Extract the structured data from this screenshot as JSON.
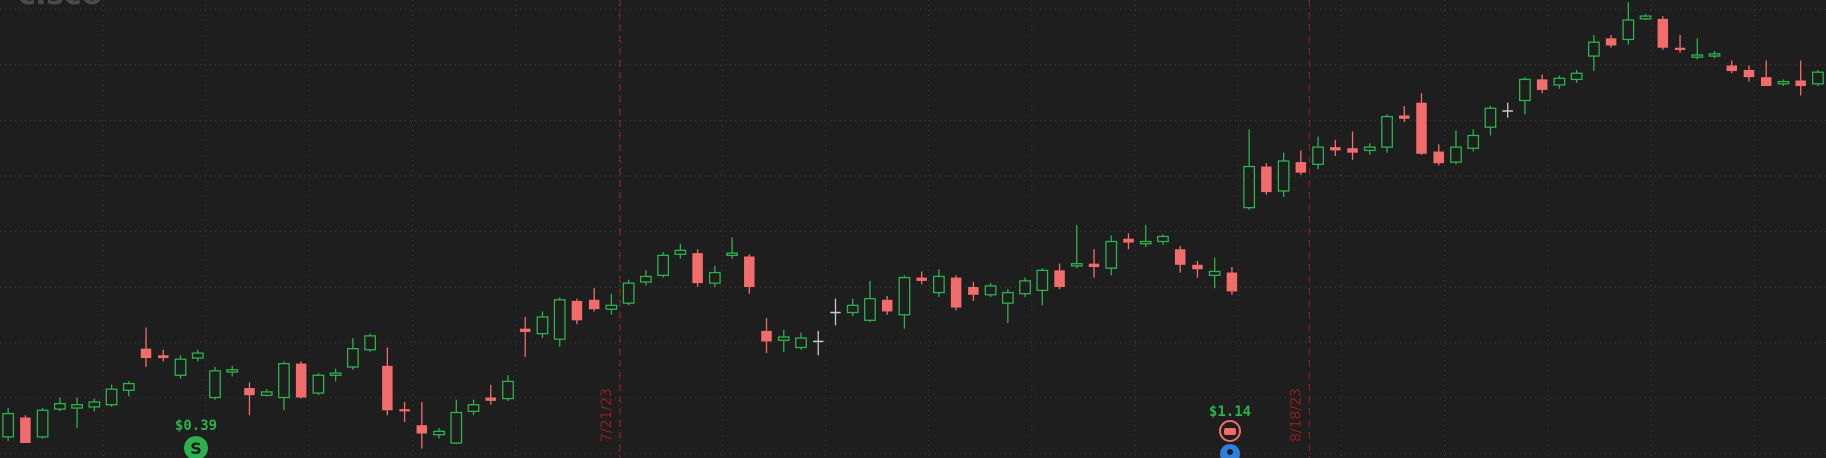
{
  "chart_data": {
    "type": "candlestick",
    "title": "cisco",
    "categories": [
      null,
      null,
      null,
      null,
      null,
      null,
      null,
      null,
      null,
      null,
      null,
      null,
      null,
      null,
      null,
      null,
      null,
      null,
      null,
      null,
      null,
      null,
      null,
      null,
      null,
      null,
      null,
      null,
      null,
      null,
      null,
      null,
      null,
      null,
      null,
      null,
      "7/21/23",
      null,
      null,
      null,
      null,
      null,
      null,
      null,
      null,
      null,
      null,
      null,
      null,
      null,
      null,
      null,
      null,
      null,
      null,
      null,
      null,
      null,
      null,
      null,
      null,
      null,
      null,
      null,
      null,
      null,
      null,
      null,
      null,
      null,
      null,
      null,
      null,
      null,
      null,
      null,
      "8/18/23",
      null,
      null,
      null,
      null,
      null,
      null,
      null,
      null,
      null,
      null,
      null,
      null,
      null,
      null,
      null,
      null,
      null,
      null,
      null,
      null,
      null,
      null,
      null,
      null,
      null,
      null,
      null,
      null,
      null
    ],
    "open": [
      50.3,
      50.65,
      50.3,
      50.8,
      50.82,
      50.84,
      50.88,
      51.14,
      51.89,
      51.77,
      51.41,
      51.72,
      51.01,
      51.47,
      51.18,
      51.05,
      51.01,
      51.62,
      51.09,
      51.41,
      51.56,
      51.87,
      51.58,
      50.8,
      50.51,
      50.34,
      50.19,
      50.76,
      51.01,
      50.99,
      52.25,
      52.16,
      52.06,
      52.75,
      52.77,
      52.6,
      52.71,
      53.09,
      53.21,
      53.59,
      53.61,
      53.07,
      53.57,
      53.55,
      52.21,
      52.04,
      51.91,
      52.02,
      52.54,
      52.54,
      52.4,
      52.77,
      52.5,
      53.17,
      52.9,
      53.17,
      53.0,
      52.86,
      52.71,
      52.88,
      52.94,
      53.3,
      53.38,
      53.42,
      53.34,
      53.87,
      53.78,
      53.82,
      53.68,
      53.4,
      53.21,
      53.26,
      54.43,
      55.17,
      54.73,
      55.25,
      55.21,
      55.52,
      55.5,
      55.46,
      55.52,
      56.09,
      56.32,
      55.44,
      55.25,
      55.5,
      55.88,
      56.17,
      56.36,
      56.74,
      56.64,
      56.74,
      57.16,
      57.48,
      57.46,
      57.83,
      57.83,
      57.31,
      57.14,
      57.16,
      56.99,
      56.91,
      56.78,
      56.66,
      56.72,
      56.66
    ],
    "high": [
      50.82,
      50.69,
      50.82,
      51.01,
      51.01,
      50.99,
      51.24,
      51.3,
      52.27,
      51.87,
      51.77,
      51.87,
      51.56,
      51.58,
      51.28,
      51.16,
      51.66,
      51.66,
      51.45,
      51.53,
      52.08,
      52.16,
      51.91,
      50.93,
      50.93,
      50.46,
      50.97,
      50.97,
      51.24,
      51.41,
      52.46,
      52.56,
      52.81,
      52.79,
      52.98,
      52.88,
      53.13,
      53.3,
      53.63,
      53.78,
      53.68,
      53.38,
      53.89,
      53.59,
      52.44,
      52.23,
      52.18,
      52.21,
      52.79,
      52.79,
      53.11,
      52.84,
      53.21,
      53.28,
      53.32,
      53.21,
      53.09,
      53.07,
      52.96,
      53.17,
      53.34,
      53.42,
      54.12,
      53.68,
      53.93,
      53.97,
      54.12,
      53.95,
      53.74,
      53.47,
      53.53,
      53.36,
      55.84,
      55.23,
      55.42,
      55.46,
      55.71,
      55.65,
      55.8,
      55.59,
      56.11,
      56.26,
      56.49,
      55.57,
      55.82,
      55.84,
      56.26,
      56.32,
      56.78,
      56.83,
      56.81,
      56.91,
      57.54,
      57.54,
      58.13,
      57.92,
      57.88,
      57.54,
      57.48,
      57.25,
      57.08,
      56.99,
      57.08,
      56.74,
      57.08,
      56.91
    ],
    "low": [
      50.23,
      50.19,
      50.27,
      50.76,
      50.46,
      50.76,
      50.84,
      51.03,
      51.56,
      51.66,
      51.35,
      51.66,
      50.97,
      51.39,
      50.69,
      51.03,
      50.78,
      50.99,
      51.05,
      51.3,
      51.51,
      51.83,
      50.69,
      50.57,
      50.09,
      50.27,
      50.17,
      50.69,
      50.88,
      50.95,
      51.74,
      52.08,
      51.93,
      52.33,
      52.56,
      52.5,
      52.67,
      53.03,
      53.17,
      53.51,
      53.0,
      53.0,
      53.51,
      52.88,
      51.81,
      51.83,
      51.87,
      51.77,
      52.31,
      52.48,
      52.37,
      52.5,
      52.25,
      53.05,
      52.82,
      52.58,
      52.75,
      52.82,
      52.35,
      52.82,
      52.67,
      52.96,
      53.34,
      53.17,
      53.21,
      53.68,
      53.72,
      53.76,
      53.26,
      53.17,
      52.98,
      52.86,
      54.39,
      54.66,
      54.62,
      55.02,
      55.12,
      55.36,
      55.29,
      55.38,
      55.42,
      55.97,
      55.38,
      55.19,
      55.21,
      55.44,
      55.73,
      56.05,
      56.11,
      56.49,
      56.57,
      56.68,
      56.89,
      57.31,
      57.37,
      57.81,
      57.27,
      57.22,
      57.1,
      57.12,
      56.85,
      56.7,
      56.62,
      56.62,
      56.45,
      56.62
    ],
    "close": [
      50.72,
      50.19,
      50.78,
      50.9,
      50.88,
      50.93,
      51.16,
      51.26,
      51.72,
      51.72,
      51.7,
      51.81,
      51.49,
      51.51,
      51.05,
      51.11,
      51.62,
      51.01,
      51.41,
      51.45,
      51.89,
      52.12,
      50.78,
      50.76,
      50.36,
      50.4,
      50.74,
      50.88,
      50.95,
      51.3,
      52.19,
      52.46,
      52.77,
      52.4,
      52.6,
      52.67,
      53.07,
      53.19,
      53.57,
      53.66,
      53.07,
      53.26,
      53.61,
      53.0,
      52.02,
      52.1,
      52.08,
      52.02,
      52.54,
      52.67,
      52.79,
      52.56,
      53.17,
      53.11,
      53.19,
      52.63,
      52.86,
      53.02,
      52.9,
      53.11,
      53.3,
      53.0,
      53.42,
      53.36,
      53.82,
      53.8,
      53.82,
      53.91,
      53.4,
      53.32,
      53.28,
      52.92,
      55.17,
      54.71,
      55.27,
      55.06,
      55.52,
      55.46,
      55.42,
      55.52,
      56.07,
      56.03,
      55.4,
      55.23,
      55.52,
      55.73,
      56.22,
      56.17,
      56.74,
      56.55,
      56.76,
      56.85,
      57.41,
      57.35,
      57.81,
      57.88,
      57.31,
      57.27,
      57.18,
      57.2,
      56.89,
      56.78,
      56.62,
      56.7,
      56.62,
      56.87
    ],
    "ylim": [
      49.92,
      58.17
    ],
    "yticks": [
      50,
      51,
      52,
      53,
      54,
      55,
      56,
      57,
      58
    ],
    "grid": true,
    "up_color": "#2bb24c",
    "down_color": "#f26c6c",
    "flat_color": "#c8c8c8",
    "marker_color": "#8e1f1f",
    "annotations": [
      "$0.39",
      "$1.14"
    ]
  }
}
